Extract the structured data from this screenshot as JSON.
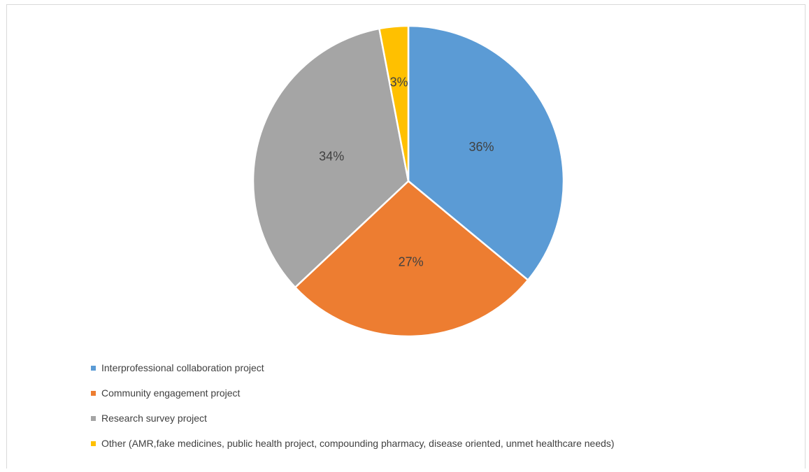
{
  "chart_data": {
    "type": "pie",
    "title": "",
    "categories": [
      "Interprofessional collaboration project",
      "Community engagement project",
      "Research survey project",
      "Other (AMR,fake medicines, public health project, compounding pharmacy, disease oriented, unmet healthcare needs)"
    ],
    "values": [
      36,
      27,
      34,
      3
    ],
    "data_labels": [
      "36%",
      "27%",
      "34%",
      "3%"
    ],
    "colors": [
      "#5b9bd5",
      "#ed7d31",
      "#a5a5a5",
      "#ffc000"
    ],
    "start_angle_deg": 0,
    "direction": "clockwise",
    "legend_position": "bottom-left"
  }
}
